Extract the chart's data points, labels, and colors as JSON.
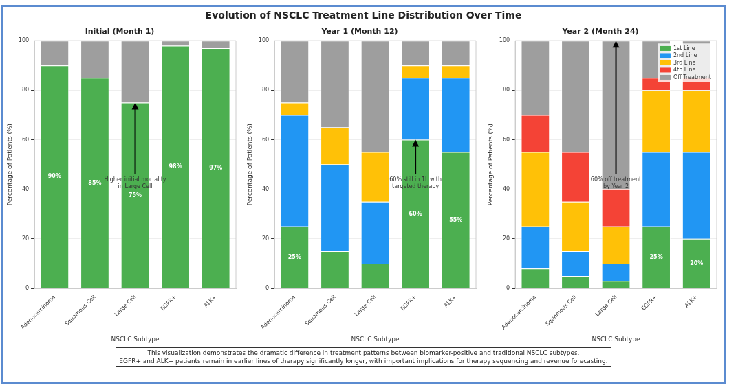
{
  "chart_data": [
    {
      "type": "other",
      "title": "Evolution of NSCLC Treatment Line Distribution Over Time"
    },
    {
      "type": "bar",
      "title": "Initial (Month 1)",
      "xlabel": "NSCLC Subtype",
      "ylabel": "Percentage of Patients (%)",
      "stacked": true,
      "grid": "y",
      "legend": false,
      "categories": [
        "Adenocarcinoma",
        "Squamous Cell",
        "Large Cell",
        "EGFR+",
        "ALK+"
      ],
      "ylim": [
        0,
        100
      ],
      "yticks": [
        0,
        20,
        40,
        60,
        80,
        100
      ],
      "series": [
        {
          "color": "#4caf50",
          "values": [
            90,
            85,
            75,
            98,
            97
          ],
          "value_labels": [
            "90%",
            "85%",
            "75%",
            "98%",
            "97%"
          ]
        },
        {
          "color": "#9e9e9e",
          "values": [
            10,
            15,
            25,
            2,
            3
          ]
        }
      ],
      "annotations": [
        {
          "text": "Higher initial mortality\nin Large Cell",
          "x": "Large Cell",
          "y": 75
        }
      ]
    },
    {
      "type": "bar",
      "title": "Year 1 (Month 12)",
      "xlabel": "NSCLC Subtype",
      "ylabel": "Percentage of Patients (%)",
      "stacked": true,
      "grid": "y",
      "legend": false,
      "categories": [
        "Adenocarcinoma",
        "Squamous Cell",
        "Large Cell",
        "EGFR+",
        "ALK+"
      ],
      "ylim": [
        0,
        100
      ],
      "yticks": [
        0,
        20,
        40,
        60,
        80,
        100
      ],
      "series": [
        {
          "color": "#4caf50",
          "values": [
            25,
            15,
            10,
            60,
            55
          ],
          "value_labels": [
            "25%",
            null,
            null,
            "60%",
            "55%"
          ]
        },
        {
          "color": "#2196f3",
          "values": [
            45,
            35,
            25,
            25,
            30
          ]
        },
        {
          "color": "#ffc107",
          "values": [
            5,
            15,
            20,
            5,
            5
          ]
        },
        {
          "color": "#9e9e9e",
          "values": [
            25,
            35,
            45,
            10,
            10
          ]
        }
      ],
      "annotations": [
        {
          "text": "60% still in 1L with\ntargeted therapy",
          "x": "EGFR+",
          "y": 60
        }
      ]
    },
    {
      "type": "bar",
      "title": "Year 2 (Month 24)",
      "xlabel": "NSCLC Subtype",
      "ylabel": "Percentage of Patients (%)",
      "stacked": true,
      "grid": "y",
      "legend": "top right",
      "categories": [
        "Adenocarcinoma",
        "Squamous Cell",
        "Large Cell",
        "EGFR+",
        "ALK+"
      ],
      "ylim": [
        0,
        100
      ],
      "yticks": [
        0,
        20,
        40,
        60,
        80,
        100
      ],
      "series": [
        {
          "name": "1st Line",
          "color": "#4caf50",
          "values": [
            8,
            5,
            3,
            25,
            20
          ],
          "value_labels": [
            null,
            null,
            null,
            "25%",
            "20%"
          ]
        },
        {
          "name": "2nd Line",
          "color": "#2196f3",
          "values": [
            17,
            10,
            7,
            30,
            35
          ]
        },
        {
          "name": "3rd Line",
          "color": "#ffc107",
          "values": [
            30,
            20,
            15,
            25,
            25
          ]
        },
        {
          "name": "4th Line",
          "color": "#f44336",
          "values": [
            15,
            20,
            15,
            5,
            5
          ]
        },
        {
          "name": "Off Treatment",
          "color": "#9e9e9e",
          "values": [
            30,
            45,
            60,
            15,
            15
          ]
        }
      ],
      "annotations": [
        {
          "text": "60% off treatment\nby Year 2",
          "x": "Large Cell",
          "y": 100
        }
      ]
    },
    {
      "type": "other",
      "annotations": [
        "This visualization demonstrates the dramatic difference in treatment patterns between biomarker-positive and traditional NSCLC subtypes.\nEGFR+ and ALK+ patients remain in earlier lines of therapy significantly longer, with important implications for therapy sequencing and revenue forecasting."
      ]
    }
  ]
}
